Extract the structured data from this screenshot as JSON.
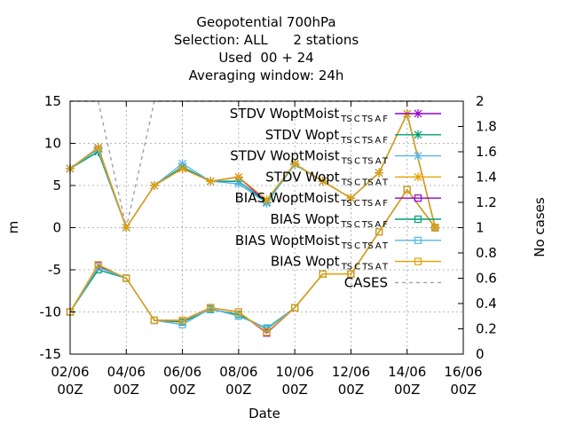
{
  "chart_data": {
    "type": "line",
    "title_lines": [
      "Geopotential 700hPa",
      "Selection: ALL      2 stations",
      "Used  00 + 24",
      "Averaging window: 24h"
    ],
    "xlabel": "Date",
    "ylabel": "m",
    "y2label": "No cases",
    "xlim": [
      0,
      14
    ],
    "ylim": [
      -15,
      15
    ],
    "y2lim": [
      0,
      2
    ],
    "grid": true,
    "legend_position": "top-right",
    "x_ticks": [
      {
        "x": 0,
        "line1": "02/06",
        "line2": "00Z"
      },
      {
        "x": 2,
        "line1": "04/06",
        "line2": "00Z"
      },
      {
        "x": 4,
        "line1": "06/06",
        "line2": "00Z"
      },
      {
        "x": 6,
        "line1": "08/06",
        "line2": "00Z"
      },
      {
        "x": 8,
        "line1": "10/06",
        "line2": "00Z"
      },
      {
        "x": 10,
        "line1": "12/06",
        "line2": "00Z"
      },
      {
        "x": 12,
        "line1": "14/06",
        "line2": "00Z"
      },
      {
        "x": 14,
        "line1": "16/06",
        "line2": "00Z"
      }
    ],
    "y_ticks": [
      -15,
      -10,
      -5,
      0,
      5,
      10,
      15
    ],
    "y2_ticks": [
      "0",
      "0.2",
      "0.4",
      "0.6",
      "0.8",
      "1",
      "1.2",
      "1.4",
      "1.6",
      "1.8",
      "2"
    ],
    "x": [
      0,
      1,
      2,
      3,
      4,
      5,
      6,
      7,
      8,
      9,
      10,
      11,
      12,
      13
    ],
    "series": [
      {
        "name": "STDV WoptMoist TS C TS A F",
        "legend": {
          "base": "STDV WoptMoist",
          "subs": [
            "TS",
            "C",
            "TS",
            "A",
            "F"
          ]
        },
        "color": "#9400d3",
        "marker": "x-cross",
        "axis": "y",
        "values": [
          7.0,
          9.5,
          0.0,
          5.0,
          7.0,
          5.5,
          6.0,
          3.0,
          7.5,
          5.5,
          3.5,
          6.5,
          13.5,
          0.0
        ]
      },
      {
        "name": "STDV Wopt TS C TS A F",
        "legend": {
          "base": "STDV Wopt",
          "subs": [
            "TS",
            "C",
            "TS",
            "A",
            "F"
          ]
        },
        "color": "#009e73",
        "marker": "x-cross",
        "axis": "y",
        "values": [
          7.0,
          9.0,
          0.0,
          5.0,
          7.2,
          5.5,
          5.5,
          3.0,
          7.5,
          5.5,
          3.5,
          6.5,
          13.5,
          0.0
        ]
      },
      {
        "name": "STDV WoptMoist TS C TS A T",
        "legend": {
          "base": "STDV WoptMoist",
          "subs": [
            "TS",
            "C",
            "TS",
            "A",
            "T"
          ]
        },
        "color": "#56b4e9",
        "marker": "x-cross",
        "axis": "y",
        "values": [
          7.0,
          9.3,
          0.0,
          5.0,
          7.6,
          5.5,
          5.2,
          2.9,
          7.5,
          5.5,
          3.5,
          6.5,
          13.5,
          0.0
        ]
      },
      {
        "name": "STDV Wopt TS C TS A T",
        "legend": {
          "base": "STDV Wopt",
          "subs": [
            "TS",
            "C",
            "TS",
            "A",
            "T"
          ]
        },
        "color": "#e69f00",
        "marker": "x-cross",
        "axis": "y",
        "values": [
          7.0,
          9.5,
          0.0,
          5.0,
          7.0,
          5.5,
          6.0,
          3.3,
          7.6,
          5.5,
          3.5,
          6.5,
          13.5,
          0.0
        ]
      },
      {
        "name": "BIAS WoptMoist TS C TS A F",
        "legend": {
          "base": "BIAS WoptMoist",
          "subs": [
            "TS",
            "C",
            "TS",
            "A",
            "F"
          ]
        },
        "color": "#9400d3",
        "marker": "square",
        "axis": "y",
        "values": [
          -10.0,
          -4.5,
          -6.0,
          -11.0,
          -11.0,
          -9.5,
          -10.0,
          -12.5,
          -9.5,
          -5.5,
          -5.5,
          -0.5,
          4.5,
          -0.0
        ]
      },
      {
        "name": "BIAS Wopt TS C TS A F",
        "legend": {
          "base": "BIAS Wopt",
          "subs": [
            "TS",
            "C",
            "TS",
            "A",
            "F"
          ]
        },
        "color": "#009e73",
        "marker": "square",
        "axis": "y",
        "values": [
          -10.0,
          -5.0,
          -6.0,
          -11.0,
          -11.2,
          -9.7,
          -10.3,
          -12.0,
          -9.5,
          -5.5,
          -5.5,
          -0.5,
          4.5,
          -0.0
        ]
      },
      {
        "name": "BIAS WoptMoist TS C TS A T",
        "legend": {
          "base": "BIAS WoptMoist",
          "subs": [
            "TS",
            "C",
            "TS",
            "A",
            "T"
          ]
        },
        "color": "#56b4e9",
        "marker": "square",
        "axis": "y",
        "values": [
          -10.0,
          -4.7,
          -6.0,
          -11.0,
          -11.5,
          -9.6,
          -10.5,
          -11.9,
          -9.5,
          -5.5,
          -5.5,
          -0.5,
          4.5,
          -0.0
        ]
      },
      {
        "name": "BIAS Wopt TS C TS A T",
        "legend": {
          "base": "BIAS Wopt",
          "subs": [
            "TS",
            "C",
            "TS",
            "A",
            "T"
          ]
        },
        "color": "#e69f00",
        "marker": "square",
        "axis": "y",
        "values": [
          -10.0,
          -4.4,
          -6.0,
          -11.0,
          -11.0,
          -9.5,
          -10.0,
          -12.4,
          -9.5,
          -5.5,
          -5.5,
          -0.5,
          4.5,
          -0.0
        ]
      },
      {
        "name": "CASES",
        "legend": {
          "base": "CASES",
          "subs": []
        },
        "color": "#a0a0a0",
        "marker": "none",
        "dashed": true,
        "axis": "y2",
        "values": [
          2,
          2,
          1,
          2,
          2,
          2,
          2,
          2,
          2,
          2,
          2,
          2,
          2,
          2
        ]
      }
    ]
  }
}
